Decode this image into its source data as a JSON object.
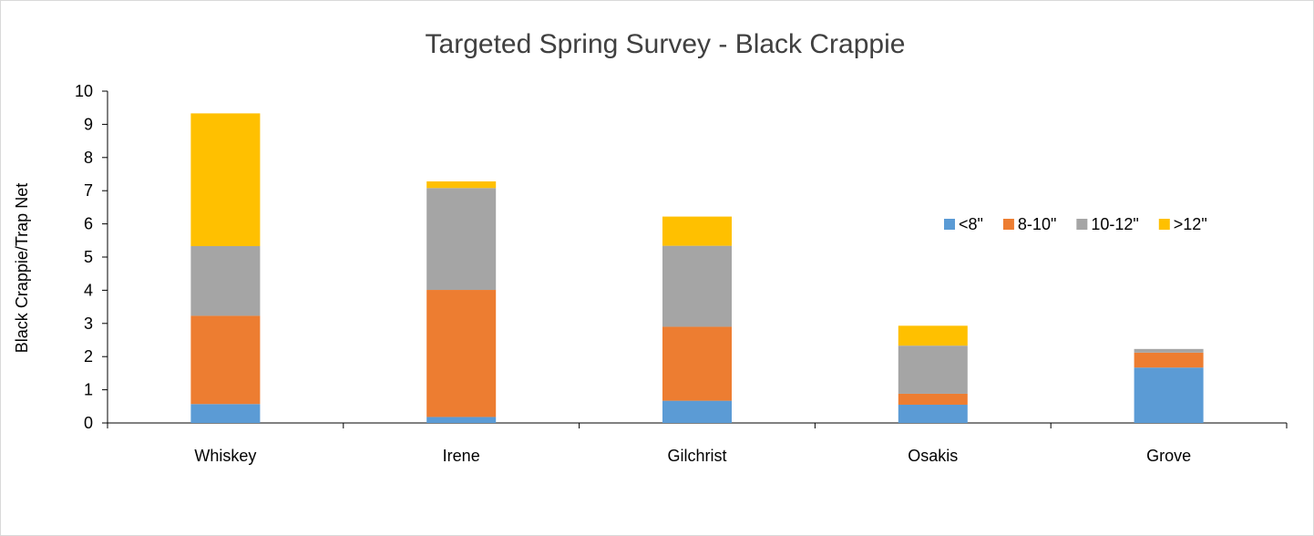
{
  "chart_data": {
    "type": "bar",
    "stacked": true,
    "title": "Targeted Spring Survey - Black Crappie",
    "xlabel": "",
    "ylabel": "Black Crappie/Trap Net",
    "ylim": [
      0,
      10
    ],
    "yticks": [
      0,
      1,
      2,
      3,
      4,
      5,
      6,
      7,
      8,
      9,
      10
    ],
    "grid": false,
    "legend_position": "right",
    "categories": [
      "Whiskey",
      "Irene",
      "Gilchrist",
      "Osakis",
      "Grove"
    ],
    "series": [
      {
        "name": "<8\"",
        "color": "#5b9bd5",
        "values": [
          0.57,
          0.18,
          0.67,
          0.55,
          1.67
        ]
      },
      {
        "name": "8-10\"",
        "color": "#ed7d31",
        "values": [
          2.66,
          3.83,
          2.23,
          0.33,
          0.45
        ]
      },
      {
        "name": "10-12\"",
        "color": "#a5a5a5",
        "values": [
          2.1,
          3.07,
          2.44,
          1.45,
          0.11
        ]
      },
      {
        "name": ">12\"",
        "color": "#ffc000",
        "values": [
          4.0,
          0.2,
          0.88,
          0.6,
          0.0
        ]
      }
    ]
  }
}
